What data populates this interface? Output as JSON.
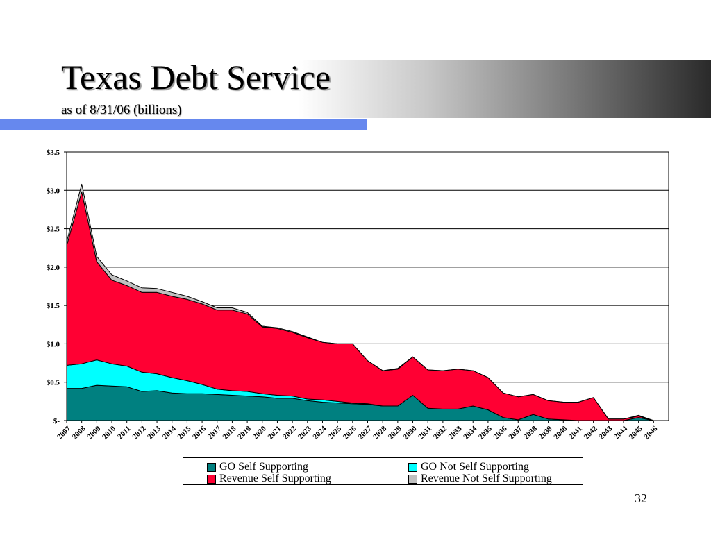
{
  "slide": {
    "title": "Texas Debt Service",
    "subtitle": "as of 8/31/06 (billions)",
    "page_number": "32"
  },
  "colors": {
    "go_self": "#008080",
    "go_not_self": "#00ffff",
    "rev_self": "#ff0033",
    "rev_not_self": "#c0c0c0"
  },
  "chart_data": {
    "type": "area",
    "stacked": true,
    "categories": [
      "2007",
      "2008",
      "2009",
      "2010",
      "2011",
      "2012",
      "2013",
      "2014",
      "2015",
      "2016",
      "2017",
      "2018",
      "2019",
      "2020",
      "2021",
      "2022",
      "2023",
      "2024",
      "2025",
      "2026",
      "2027",
      "2028",
      "2029",
      "2030",
      "2031",
      "2032",
      "2033",
      "2034",
      "2035",
      "2036",
      "2037",
      "2038",
      "2039",
      "2040",
      "2041",
      "2042",
      "2043",
      "2044",
      "2045",
      "2046"
    ],
    "ylim": [
      0,
      3.5
    ],
    "yticks": [
      0,
      0.5,
      1.0,
      1.5,
      2.0,
      2.5,
      3.0,
      3.5
    ],
    "ytick_labels": [
      "$-",
      "$0.5",
      "$1.0",
      "$1.5",
      "$2.0",
      "$2.5",
      "$3.0",
      "$3.5"
    ],
    "grid": true,
    "legend_position": "bottom",
    "series": [
      {
        "name": "GO Self Supporting",
        "color_key": "go_self",
        "values": [
          0.42,
          0.42,
          0.46,
          0.45,
          0.44,
          0.38,
          0.39,
          0.36,
          0.35,
          0.35,
          0.34,
          0.33,
          0.32,
          0.31,
          0.29,
          0.29,
          0.26,
          0.24,
          0.23,
          0.22,
          0.21,
          0.19,
          0.19,
          0.33,
          0.16,
          0.15,
          0.15,
          0.19,
          0.14,
          0.04,
          0.01,
          0.08,
          0.02,
          0.01,
          0.0,
          0.0,
          0.0,
          0.0,
          0.04,
          0.0
        ]
      },
      {
        "name": "GO Not Self Supporting",
        "color_key": "go_not_self",
        "values": [
          0.3,
          0.32,
          0.33,
          0.29,
          0.27,
          0.25,
          0.22,
          0.2,
          0.17,
          0.12,
          0.07,
          0.06,
          0.06,
          0.04,
          0.04,
          0.03,
          0.02,
          0.03,
          0.02,
          0.01,
          0.01,
          0.0,
          0.0,
          0.0,
          0.0,
          0.0,
          0.0,
          0.0,
          0.0,
          0.0,
          0.0,
          0.0,
          0.0,
          0.0,
          0.0,
          0.0,
          0.0,
          0.0,
          0.0,
          0.0
        ]
      },
      {
        "name": "Revenue Self Supporting",
        "color_key": "rev_self",
        "values": [
          1.56,
          2.24,
          1.28,
          1.09,
          1.05,
          1.04,
          1.06,
          1.06,
          1.06,
          1.05,
          1.03,
          1.05,
          1.01,
          0.87,
          0.87,
          0.83,
          0.8,
          0.75,
          0.75,
          0.77,
          0.56,
          0.46,
          0.48,
          0.5,
          0.5,
          0.5,
          0.52,
          0.46,
          0.42,
          0.32,
          0.3,
          0.26,
          0.24,
          0.23,
          0.24,
          0.3,
          0.02,
          0.02,
          0.02,
          0.0
        ]
      },
      {
        "name": "Revenue Not Self Supporting",
        "color_key": "rev_not_self",
        "values": [
          0.05,
          0.1,
          0.07,
          0.07,
          0.06,
          0.06,
          0.05,
          0.05,
          0.04,
          0.03,
          0.03,
          0.03,
          0.02,
          0.01,
          0.01,
          0.01,
          0.01,
          0.0,
          0.0,
          0.0,
          0.0,
          0.0,
          0.01,
          0.0,
          0.0,
          0.0,
          0.0,
          0.0,
          0.0,
          0.0,
          0.0,
          0.0,
          0.0,
          0.0,
          0.0,
          0.0,
          0.0,
          0.0,
          0.01,
          0.0
        ]
      }
    ]
  }
}
